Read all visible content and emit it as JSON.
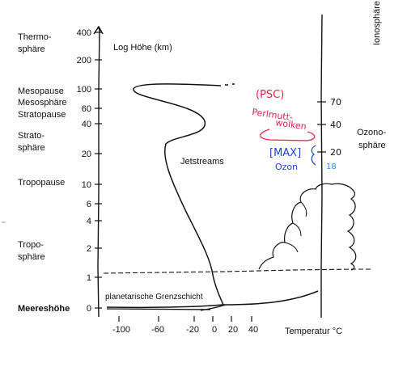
{
  "left_labels": {
    "thermosphere": [
      "Thermo-",
      "sphäre"
    ],
    "mesopause": "Mesopause",
    "mesosphere": "Mesosphäre",
    "stratopause": "Stratopause",
    "stratosphere": [
      "Strato-",
      "sphäre"
    ],
    "tropopause": "Tropopause",
    "troposphere": [
      "Tropo-",
      "sphäre"
    ],
    "sea_level": "Meereshöhe"
  },
  "right_labels": {
    "ionosphere": "Ionosphäre",
    "ozonosphere": [
      "Ozono-",
      "sphäre"
    ]
  },
  "y_axis": {
    "title": "Log Höhe (km)",
    "ticks": [
      "400",
      "200",
      "100",
      "60",
      "40",
      "20",
      "10",
      "6",
      "4",
      "2",
      "1",
      "0"
    ]
  },
  "x_axis": {
    "title": "Temperatur °C",
    "ticks": [
      "-100",
      "-60",
      "-20",
      "0",
      "20",
      "40"
    ]
  },
  "right_axis": {
    "ticks": [
      "70",
      "40",
      "20",
      "18"
    ]
  },
  "annotations": {
    "jetstreams": "Jetstreams",
    "boundary_layer": "planetarische Grenzschicht",
    "psc": "(PSC)",
    "perlmutt": "Perlmutt-",
    "wolken": "wolken",
    "max": "[MAX]",
    "ozon": "Ozon"
  },
  "colors": {
    "ink": "#111111",
    "red": "#e8204a",
    "blue": "#1c3fe0",
    "light_blue": "#2f8fe0"
  }
}
